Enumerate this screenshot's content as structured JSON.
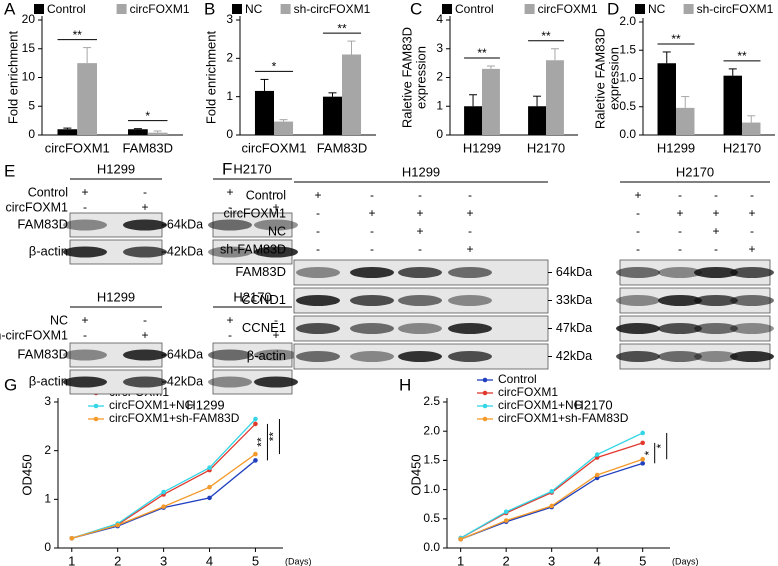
{
  "chart_data": [
    {
      "type": "bar",
      "panel": "A",
      "ylabel": [
        "Fold enrichment"
      ],
      "categories": [
        "circFOXM1",
        "FAM83D"
      ],
      "series": [
        {
          "name": "Control",
          "color": "#000000",
          "values": [
            1.0,
            1.0
          ],
          "errors": [
            0.2,
            0.1
          ]
        },
        {
          "name": "circFOXM1",
          "color": "#a6a6a6",
          "values": [
            12.5,
            0.4
          ],
          "errors": [
            2.7,
            0.3
          ]
        }
      ],
      "annotations": [
        "**",
        "*"
      ],
      "ylim": [
        0,
        20
      ],
      "yticks": [
        0,
        5,
        10,
        15,
        20
      ]
    },
    {
      "type": "bar",
      "panel": "B",
      "ylabel": [
        "Fold enrichment"
      ],
      "categories": [
        "circFOXM1",
        "FAM83D"
      ],
      "series": [
        {
          "name": "NC",
          "color": "#000000",
          "values": [
            1.15,
            1.0
          ],
          "errors": [
            0.3,
            0.1
          ]
        },
        {
          "name": "sh-circFOXM1",
          "color": "#a6a6a6",
          "values": [
            0.35,
            2.1
          ],
          "errors": [
            0.05,
            0.35
          ]
        }
      ],
      "annotations": [
        "*",
        "**"
      ],
      "ylim": [
        0,
        3
      ],
      "yticks": [
        0,
        1,
        2,
        3
      ]
    },
    {
      "type": "bar",
      "panel": "C",
      "ylabel": [
        "Raletive FAM83D",
        "expression"
      ],
      "categories": [
        "H1299",
        "H2170"
      ],
      "series": [
        {
          "name": "Control",
          "color": "#000000",
          "values": [
            1.0,
            1.0
          ],
          "errors": [
            0.4,
            0.35
          ]
        },
        {
          "name": "circFOXM1",
          "color": "#a6a6a6",
          "values": [
            2.3,
            2.6
          ],
          "errors": [
            0.1,
            0.4
          ]
        }
      ],
      "annotations": [
        "**",
        "**"
      ],
      "ylim": [
        0,
        4
      ],
      "yticks": [
        0,
        1,
        2,
        3,
        4
      ]
    },
    {
      "type": "bar",
      "panel": "D",
      "ylabel": [
        "Raletive FAM83D",
        "expression"
      ],
      "categories": [
        "H1299",
        "H2170"
      ],
      "series": [
        {
          "name": "NC",
          "color": "#000000",
          "values": [
            1.27,
            1.05
          ],
          "errors": [
            0.2,
            0.12
          ]
        },
        {
          "name": "sh-circFOXM1",
          "color": "#a6a6a6",
          "values": [
            0.48,
            0.22
          ],
          "errors": [
            0.2,
            0.12
          ]
        }
      ],
      "annotations": [
        "**",
        "**"
      ],
      "ylim": [
        0,
        2.0
      ],
      "yticks": [
        {
          "value": 0,
          "label": "0.0"
        },
        {
          "value": 0.5,
          "label": "0.5"
        },
        {
          "value": 1,
          "label": "1.0"
        },
        {
          "value": 1.5,
          "label": "1.5"
        },
        {
          "value": 2,
          "label": "2.0"
        }
      ]
    },
    {
      "type": "line",
      "panel": "G",
      "title": "H1299",
      "ylabel": [
        "OD450"
      ],
      "xlabel": "(Days)",
      "x": [
        1,
        2,
        3,
        4,
        5
      ],
      "xlim": [
        0.7,
        5.6
      ],
      "xticks": [
        1,
        2,
        3,
        4,
        5
      ],
      "series": [
        {
          "name": "Control",
          "color": "#1f3fbf",
          "values": [
            0.2,
            0.45,
            0.83,
            1.03,
            1.8
          ]
        },
        {
          "name": "circFOXM1",
          "color": "#e03a2f",
          "values": [
            0.2,
            0.48,
            1.1,
            1.6,
            2.55
          ]
        },
        {
          "name": "circFOXM1+NC",
          "color": "#33d6e6",
          "values": [
            0.2,
            0.5,
            1.15,
            1.65,
            2.65
          ]
        },
        {
          "name": "circFOXM1+sh-FAM83D",
          "color": "#f39a2a",
          "values": [
            0.2,
            0.47,
            0.85,
            1.25,
            1.93
          ]
        }
      ],
      "annotations": [
        "**",
        "**"
      ],
      "ylim": [
        0,
        3
      ],
      "yticks": [
        0,
        1,
        2,
        3
      ]
    },
    {
      "type": "line",
      "panel": "H",
      "title": "H2170",
      "ylabel": [
        "OD450"
      ],
      "xlabel": "(Days)",
      "x": [
        1,
        2,
        3,
        4,
        5
      ],
      "xlim": [
        0.7,
        5.6
      ],
      "xticks": [
        1,
        2,
        3,
        4,
        5
      ],
      "series": [
        {
          "name": "Control",
          "color": "#1f3fbf",
          "values": [
            0.15,
            0.45,
            0.7,
            1.2,
            1.45
          ]
        },
        {
          "name": "circFOXM1",
          "color": "#e03a2f",
          "values": [
            0.17,
            0.6,
            0.95,
            1.55,
            1.8
          ]
        },
        {
          "name": "circFOXM1+NC",
          "color": "#33d6e6",
          "values": [
            0.17,
            0.62,
            0.97,
            1.6,
            1.97
          ]
        },
        {
          "name": "circFOXM1+sh-FAM83D",
          "color": "#f39a2a",
          "values": [
            0.15,
            0.47,
            0.72,
            1.25,
            1.52
          ]
        }
      ],
      "annotations": [
        "*",
        "*"
      ],
      "ylim": [
        0,
        2.5
      ],
      "yticks": [
        {
          "value": 0,
          "label": "0.0"
        },
        {
          "value": 0.5,
          "label": "0.5"
        },
        {
          "value": 1,
          "label": "1.0"
        },
        {
          "value": 1.5,
          "label": "1.5"
        },
        {
          "value": 2,
          "label": "2.0"
        },
        {
          "value": 2.5,
          "label": "2.5"
        }
      ]
    }
  ],
  "blots": [
    {
      "panel": "E",
      "sets": [
        {
          "cells": [
            "H1299",
            "H2170"
          ],
          "rows": [
            {
              "label": "Control",
              "signs": [
                [
                  "+",
                  "-"
                ],
                [
                  "+",
                  "-"
                ]
              ]
            },
            {
              "label": "circFOXM1",
              "signs": [
                [
                  "-",
                  "+"
                ],
                [
                  "-",
                  "+"
                ]
              ]
            }
          ],
          "bands": [
            {
              "label": "FAM83D",
              "size": "64kDa"
            },
            {
              "label": "β-actin",
              "size": "42kDa"
            }
          ]
        },
        {
          "cells": [
            "H1299",
            "H2170"
          ],
          "rows": [
            {
              "label": "NC",
              "signs": [
                [
                  "+",
                  "-"
                ],
                [
                  "+",
                  "-"
                ]
              ]
            },
            {
              "label": "sh-circFOXM1",
              "signs": [
                [
                  "-",
                  "+"
                ],
                [
                  "-",
                  "+"
                ]
              ]
            }
          ],
          "bands": [
            {
              "label": "FAM83D",
              "size": "64kDa"
            },
            {
              "label": "β-actin",
              "size": "42kDa"
            }
          ]
        }
      ]
    },
    {
      "panel": "F",
      "sets": [
        {
          "cells": [
            "H1299",
            "H2170"
          ],
          "rows": [
            {
              "label": "Control",
              "signs": [
                [
                  "+",
                  "-",
                  "-",
                  "-"
                ],
                [
                  "+",
                  "-",
                  "-",
                  "-"
                ]
              ]
            },
            {
              "label": "circFOXM1",
              "signs": [
                [
                  "-",
                  "+",
                  "+",
                  "+"
                ],
                [
                  "-",
                  "+",
                  "+",
                  "+"
                ]
              ]
            },
            {
              "label": "NC",
              "signs": [
                [
                  "-",
                  "-",
                  "+",
                  "-"
                ],
                [
                  "-",
                  "-",
                  "+",
                  "-"
                ]
              ]
            },
            {
              "label": "sh-FAM83D",
              "signs": [
                [
                  "-",
                  "-",
                  "-",
                  "+"
                ],
                [
                  "-",
                  "-",
                  "-",
                  "+"
                ]
              ]
            }
          ],
          "bands": [
            {
              "label": "FAM83D",
              "size": "64kDa"
            },
            {
              "label": "CCND1",
              "size": "33kDa"
            },
            {
              "label": "CCNE1",
              "size": "47kDa"
            },
            {
              "label": "β-actin",
              "size": "42kDa"
            }
          ]
        }
      ]
    }
  ]
}
